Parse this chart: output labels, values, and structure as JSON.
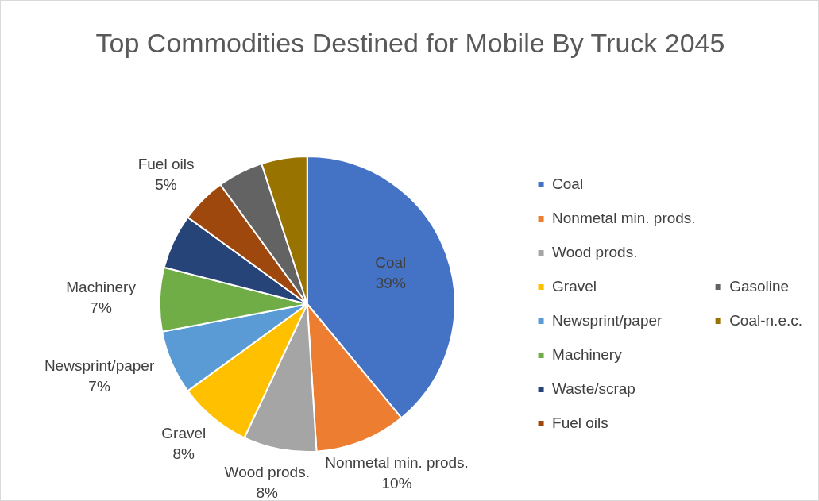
{
  "chart_data": {
    "type": "pie",
    "title": "Top Commodities Destined for Mobile By Truck 2045",
    "categories": [
      "Coal",
      "Nonmetal min. prods.",
      "Wood prods.",
      "Gravel",
      "Newsprint/paper",
      "Machinery",
      "Waste/scrap",
      "Fuel oils",
      "Gasoline",
      "Coal-n.e.c."
    ],
    "values": [
      39,
      10,
      8,
      8,
      7,
      7,
      6,
      5,
      5,
      5
    ],
    "value_labels": [
      "39%",
      "10%",
      "8%",
      "8%",
      "7%",
      "7%",
      null,
      "5%",
      null,
      null
    ],
    "colors": [
      "#4472c4",
      "#ed7d31",
      "#a5a5a5",
      "#ffc000",
      "#5b9bd5",
      "#70ad47",
      "#264478",
      "#9e480e",
      "#636363",
      "#997300"
    ],
    "legend": "right"
  }
}
